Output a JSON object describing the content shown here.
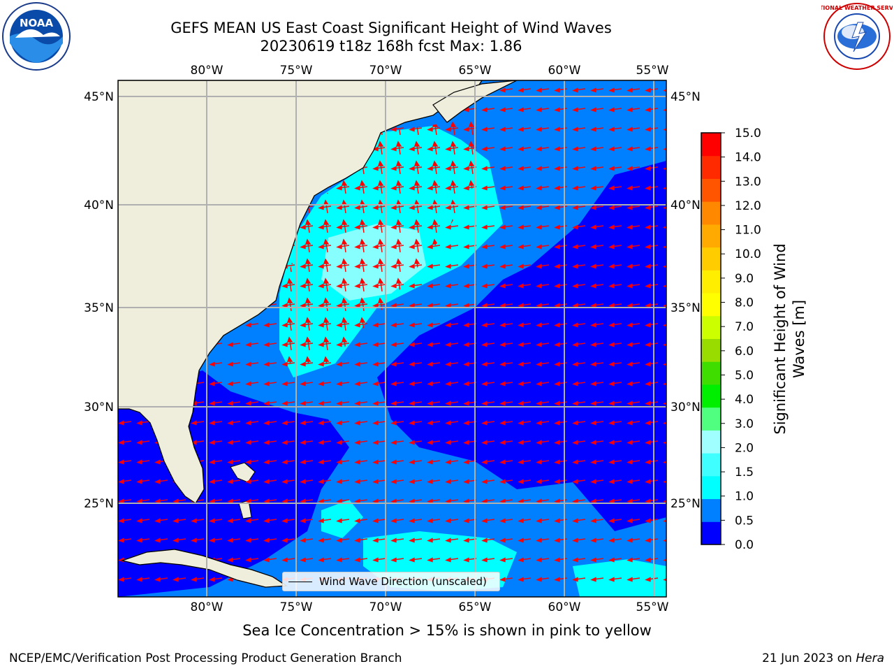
{
  "header": {
    "title_line_1": "GEFS MEAN US East Coast Significant Height of Wind Waves",
    "title_line_2": "20230619 t18z 168h fcst   Max: 1.86"
  },
  "logos": {
    "left": "noaa-logo",
    "left_text": "NOAA",
    "right": "national-weather-service-logo",
    "right_text": "NATIONAL WEATHER SERVICE"
  },
  "map": {
    "longitude_labels": [
      "80°W",
      "75°W",
      "70°W",
      "65°W",
      "60°W",
      "55°W"
    ],
    "latitude_labels": [
      "45°N",
      "40°N",
      "35°N",
      "30°N",
      "25°N"
    ],
    "land_color": "#efeedc",
    "arrow_color": "#ff0000",
    "legend_label": "Wind Wave Direction (unscaled)"
  },
  "colorbar": {
    "label_line_1": "Significant Height of Wind",
    "label_line_2": "Waves [m]",
    "ticks": [
      "0.0",
      "0.5",
      "1.0",
      "1.5",
      "2.0",
      "3.0",
      "4.0",
      "5.0",
      "6.0",
      "7.0",
      "8.0",
      "9.0",
      "10.0",
      "11.0",
      "12.0",
      "13.0",
      "14.0",
      "15.0"
    ],
    "colors": [
      "#0000ff",
      "#0080ff",
      "#00ffff",
      "#40ffff",
      "#a0ffff",
      "#50ff80",
      "#00ee00",
      "#40dd00",
      "#99dd00",
      "#ccff00",
      "#ffff00",
      "#ffee00",
      "#ffcc00",
      "#ffaa00",
      "#ff8800",
      "#ff5500",
      "#ff2a00",
      "#ff0000"
    ]
  },
  "notes": {
    "ice_note": "Sea Ice Concentration > 15% is shown in pink to yellow"
  },
  "footer": {
    "left": "NCEP/EMC/Verification Post Processing Product Generation Branch",
    "date": "21 Jun 2023 on ",
    "machine": "Hera"
  }
}
